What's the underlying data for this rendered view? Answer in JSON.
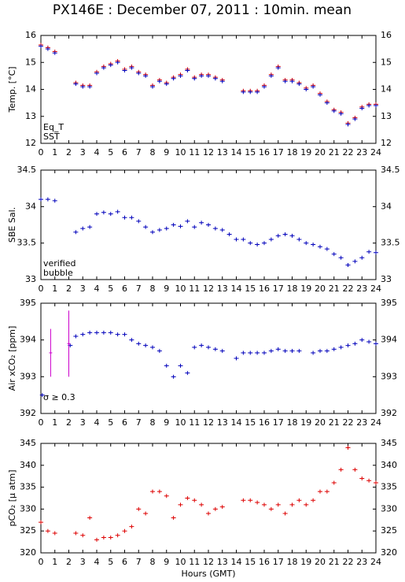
{
  "chart_data": [
    {
      "type": "scatter",
      "title": "PX146E : December 07, 2011 : 10min. mean",
      "ylabel": "Temp. [°C]",
      "x": [
        0,
        0.5,
        1,
        2.5,
        3,
        3.5,
        4,
        4.5,
        5,
        5.5,
        6,
        6.5,
        7,
        7.5,
        8,
        8.5,
        9,
        9.5,
        10,
        10.5,
        11,
        11.5,
        12,
        12.5,
        13,
        14.5,
        15,
        15.5,
        16,
        16.5,
        17,
        17.5,
        18,
        18.5,
        19,
        19.5,
        20,
        20.5,
        21,
        21.5,
        22,
        22.5,
        23,
        23.5,
        24
      ],
      "series": [
        {
          "name": "Eq_T",
          "color": "#dd0000",
          "values": [
            15.65,
            15.55,
            15.4,
            14.25,
            14.15,
            14.15,
            14.65,
            14.85,
            14.95,
            15.05,
            14.75,
            14.85,
            14.65,
            14.55,
            14.15,
            14.35,
            14.25,
            14.45,
            14.55,
            14.75,
            14.45,
            14.55,
            14.55,
            14.45,
            14.35,
            13.95,
            13.95,
            13.95,
            14.15,
            14.55,
            14.85,
            14.35,
            14.35,
            14.25,
            14.05,
            14.15,
            13.85,
            13.55,
            13.25,
            13.15,
            12.75,
            12.95,
            13.35,
            13.45,
            13.45
          ]
        },
        {
          "name": "SST",
          "color": "#0000bb",
          "values": [
            15.6,
            15.5,
            15.35,
            14.2,
            14.1,
            14.1,
            14.6,
            14.8,
            14.9,
            15.0,
            14.7,
            14.8,
            14.6,
            14.5,
            14.1,
            14.3,
            14.2,
            14.4,
            14.5,
            14.7,
            14.4,
            14.5,
            14.5,
            14.4,
            14.3,
            13.9,
            13.9,
            13.9,
            14.1,
            14.5,
            14.8,
            14.3,
            14.3,
            14.2,
            14.0,
            14.1,
            13.8,
            13.5,
            13.2,
            13.1,
            12.7,
            12.9,
            13.3,
            13.4,
            13.4
          ]
        }
      ],
      "xlim": [
        0,
        24
      ],
      "xticks": [
        0,
        1,
        2,
        3,
        4,
        5,
        6,
        7,
        8,
        9,
        10,
        11,
        12,
        13,
        14,
        15,
        16,
        17,
        18,
        19,
        20,
        21,
        22,
        23,
        24
      ],
      "ylim": [
        12,
        16
      ],
      "yticks": [
        12,
        13,
        14,
        15,
        16
      ]
    },
    {
      "type": "scatter",
      "ylabel": "SBE Sal.",
      "x": [
        0,
        0.5,
        1,
        2.5,
        3,
        3.5,
        4,
        4.5,
        5,
        5.5,
        6,
        6.5,
        7,
        7.5,
        8,
        8.5,
        9,
        9.5,
        10,
        10.5,
        11,
        11.5,
        12,
        12.5,
        13,
        13.5,
        14,
        14.5,
        15,
        15.5,
        16,
        16.5,
        17,
        17.5,
        18,
        18.5,
        19,
        19.5,
        20,
        20.5,
        21,
        21.5,
        22,
        22.5,
        23,
        23.5,
        24
      ],
      "series": [
        {
          "name": "verified",
          "color": "#0000bb",
          "values": [
            34.1,
            34.1,
            34.08,
            33.65,
            33.7,
            33.72,
            33.9,
            33.92,
            33.9,
            33.93,
            33.85,
            33.85,
            33.8,
            33.72,
            33.65,
            33.68,
            33.7,
            33.75,
            33.73,
            33.8,
            33.72,
            33.78,
            33.75,
            33.7,
            33.68,
            33.62,
            33.55,
            33.55,
            33.5,
            33.48,
            33.5,
            33.55,
            33.6,
            33.62,
            33.6,
            33.55,
            33.5,
            33.48,
            33.45,
            33.42,
            33.35,
            33.3,
            33.2,
            33.25,
            33.3,
            33.38,
            33.37
          ]
        }
      ],
      "legend_extra": [
        {
          "name": "bubble",
          "color": "#cc00cc"
        }
      ],
      "xlim": [
        0,
        24
      ],
      "xticks": [
        0,
        1,
        2,
        3,
        4,
        5,
        6,
        7,
        8,
        9,
        10,
        11,
        12,
        13,
        14,
        15,
        16,
        17,
        18,
        19,
        20,
        21,
        22,
        23,
        24
      ],
      "ylim": [
        33,
        34.5
      ],
      "yticks": [
        33,
        33.5,
        34,
        34.5
      ]
    },
    {
      "type": "scatter",
      "ylabel": "Air xCO₂ [ppm]",
      "annotation": "σ ≥ 0.3",
      "series": [
        {
          "color": "#0000bb",
          "x": [
            0.1,
            2.1,
            2.5,
            3,
            3.5,
            4,
            4.5,
            5,
            5.5,
            6,
            6.5,
            7,
            7.5,
            8,
            8.5,
            9,
            9.5,
            10,
            10.5,
            11,
            11.5,
            12,
            12.5,
            13,
            14,
            14.5,
            15,
            15.5,
            16,
            16.5,
            17,
            17.5,
            18,
            18.5,
            19.5,
            20,
            20.5,
            21,
            21.5,
            22,
            22.5,
            23,
            23.5,
            24
          ],
          "values": [
            392.5,
            393.85,
            394.1,
            394.15,
            394.2,
            394.2,
            394.2,
            394.2,
            394.15,
            394.15,
            394.0,
            393.9,
            393.85,
            393.8,
            393.7,
            393.3,
            393.0,
            393.3,
            393.1,
            393.8,
            393.85,
            393.8,
            393.75,
            393.7,
            393.5,
            393.65,
            393.65,
            393.65,
            393.65,
            393.7,
            393.75,
            393.7,
            393.7,
            393.7,
            393.65,
            393.7,
            393.7,
            393.75,
            393.8,
            393.85,
            393.9,
            394.0,
            393.95,
            393.9
          ]
        },
        {
          "color": "#cc00cc",
          "x": [
            0.7,
            2.0
          ],
          "values": [
            393.65,
            393.9
          ],
          "errors": [
            0.65,
            0.9
          ]
        }
      ],
      "xlim": [
        0,
        24
      ],
      "xticks": [
        0,
        1,
        2,
        3,
        4,
        5,
        6,
        7,
        8,
        9,
        10,
        11,
        12,
        13,
        14,
        15,
        16,
        17,
        18,
        19,
        20,
        21,
        22,
        23,
        24
      ],
      "ylim": [
        392,
        395
      ],
      "yticks": [
        392,
        393,
        394,
        395
      ]
    },
    {
      "type": "scatter",
      "ylabel": "pCO₂ [μ atm]",
      "xlabel": "Hours (GMT)",
      "x": [
        0,
        0.5,
        1,
        2.5,
        3,
        3.5,
        4,
        4.5,
        5,
        5.5,
        6,
        6.5,
        7,
        7.5,
        8,
        8.5,
        9,
        9.5,
        10,
        10.5,
        11,
        11.5,
        12,
        12.5,
        13,
        14.5,
        15,
        15.5,
        16,
        16.5,
        17,
        17.5,
        18,
        18.5,
        19,
        19.5,
        20,
        20.5,
        21,
        21.5,
        22,
        22.5,
        23,
        23.5,
        24
      ],
      "series": [
        {
          "color": "#dd0000",
          "values": [
            327,
            325,
            324.5,
            324.5,
            324,
            328,
            323,
            323.5,
            323.5,
            324,
            325,
            326,
            330,
            329,
            334,
            334,
            333,
            328,
            331,
            332.5,
            332,
            331,
            329,
            330,
            330.5,
            332,
            332,
            331.5,
            331,
            330,
            331,
            329,
            331,
            332,
            331,
            332,
            334,
            334,
            336,
            339,
            344,
            339,
            337,
            336.5,
            336
          ]
        }
      ],
      "xlim": [
        0,
        24
      ],
      "xticks": [
        0,
        1,
        2,
        3,
        4,
        5,
        6,
        7,
        8,
        9,
        10,
        11,
        12,
        13,
        14,
        15,
        16,
        17,
        18,
        19,
        20,
        21,
        22,
        23,
        24
      ],
      "ylim": [
        320,
        345
      ],
      "yticks": [
        320,
        325,
        330,
        335,
        340,
        345
      ]
    }
  ]
}
